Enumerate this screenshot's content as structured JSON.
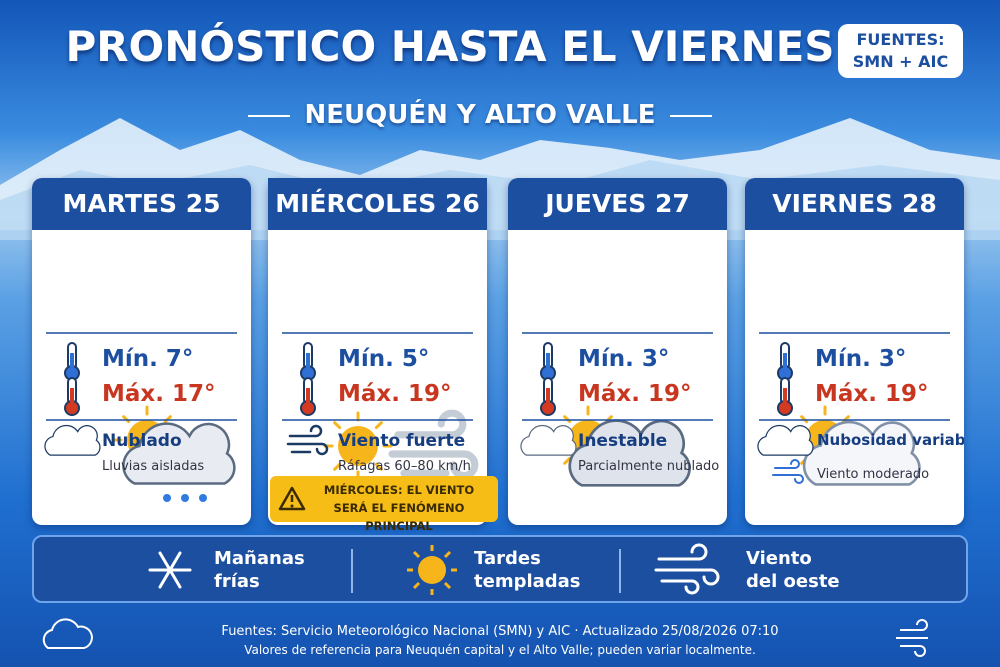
{
  "header": {
    "title": "PRONÓSTICO HASTA EL VIERNES",
    "badge": [
      "FUENTES:",
      "SMN + AIC"
    ],
    "subtitle": "NEUQUÉN Y ALTO VALLE"
  },
  "days": [
    {
      "name": "MARTES 25",
      "min": "Mín. 7°",
      "max": "Máx. 17°",
      "condition": "Nublado",
      "detail": "Lluvias aisladas"
    },
    {
      "name": "MIÉRCOLES 26",
      "min": "Mín. 5°",
      "max": "Máx. 19°",
      "condition": "Viento fuerte",
      "detail": "Ráfagas 60–80 km/h",
      "alert": [
        "MIÉRCOLES: EL VIENTO",
        "SERÁ EL FENÓMENO PRINCIPAL"
      ]
    },
    {
      "name": "JUEVES 27",
      "min": "Mín. 3°",
      "max": "Máx. 19°",
      "condition": "Inestable",
      "detail": "Parcialmente nublado"
    },
    {
      "name": "VIERNES 28",
      "min": "Mín. 3°",
      "max": "Máx. 19°",
      "condition": "Nubosidad variable",
      "detail": "Viento moderado"
    }
  ],
  "summary": [
    [
      "Mañanas",
      "frías"
    ],
    [
      "Tardes",
      "templadas"
    ],
    [
      "Viento",
      "del oeste"
    ]
  ],
  "footer": [
    "Fuentes: Servicio Meteorológico Nacional (SMN) y AIC · Actualizado 25/08/2026 07:10",
    "Valores de referencia para Neuquén capital y el Alto Valle; pueden variar localmente."
  ]
}
